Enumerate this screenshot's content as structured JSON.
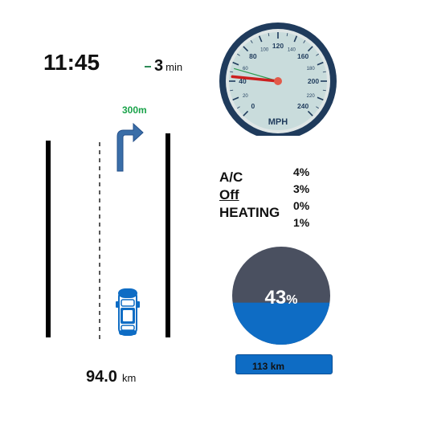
{
  "clock": "11:45",
  "eta": {
    "value": "3",
    "unit": "min"
  },
  "navigation": {
    "turn_distance": "300m",
    "turn_direction": "right-turn-arrow"
  },
  "odometer": {
    "value": "94.0",
    "unit": "km"
  },
  "speedometer": {
    "unit_label": "MPH",
    "major_ticks": [
      "0",
      "20",
      "40",
      "60",
      "80",
      "100",
      "120",
      "140",
      "160",
      "180",
      "200",
      "220",
      "240"
    ],
    "needle_value": 45,
    "colors": {
      "dial": "#c9dcdc",
      "bezel": "#1f3b5c",
      "needle": "#cc1f1f",
      "hub": "#e25a4a"
    }
  },
  "climate": {
    "labels": [
      "A/C",
      "Off",
      "HEATING"
    ],
    "values": [
      "4%",
      "3%",
      "0%",
      "1%"
    ]
  },
  "battery": {
    "percent": 43,
    "percent_text": "43",
    "percent_sign": "%",
    "range_text": "113 km",
    "colors": {
      "filled": "#0e6cc4",
      "empty": "#4a5060"
    }
  }
}
